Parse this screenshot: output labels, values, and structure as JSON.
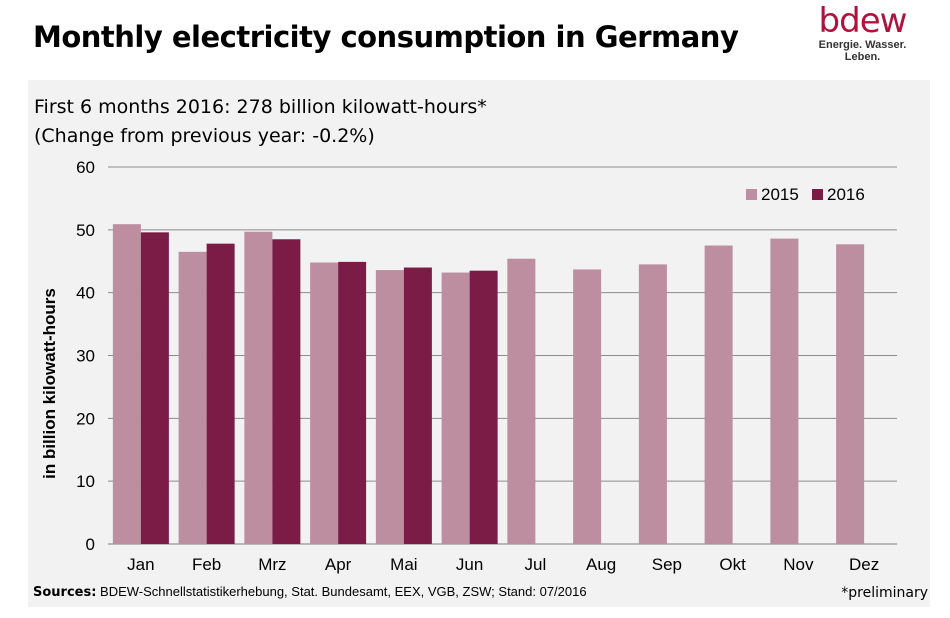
{
  "header": {
    "title": "Monthly electricity consumption in Germany",
    "logo_word": "bdew",
    "logo_tagline": "Energie. Wasser. Leben."
  },
  "chart_data": {
    "type": "bar",
    "subtitle_line1": "First 6 months 2016: 278 billion kilowatt-hours*",
    "subtitle_line2": "(Change from previous year: -0.2%)",
    "ylabel": "in billion kilowatt-hours",
    "ylim": [
      0,
      60
    ],
    "yticks": [
      0,
      10,
      20,
      30,
      40,
      50,
      60
    ],
    "grid": true,
    "legend_position": "top-right",
    "categories": [
      "Jan",
      "Feb",
      "Mrz",
      "Apr",
      "Mai",
      "Jun",
      "Jul",
      "Aug",
      "Sep",
      "Okt",
      "Nov",
      "Dez"
    ],
    "series": [
      {
        "name": "2015",
        "color": "#bd8da0",
        "values": [
          50.9,
          46.5,
          49.7,
          44.8,
          43.6,
          43.2,
          45.4,
          43.7,
          44.5,
          47.5,
          48.6,
          47.7
        ]
      },
      {
        "name": "2016",
        "color": "#7b1c47",
        "values": [
          49.6,
          47.8,
          48.5,
          44.9,
          44.0,
          43.5,
          null,
          null,
          null,
          null,
          null,
          null
        ]
      }
    ]
  },
  "footer": {
    "sources_label": "Sources:",
    "sources_text": "BDEW-Schnellstatistikerhebung, Stat. Bundesamt, EEX, VGB, ZSW; Stand: 07/2016",
    "note": "*preliminary"
  }
}
